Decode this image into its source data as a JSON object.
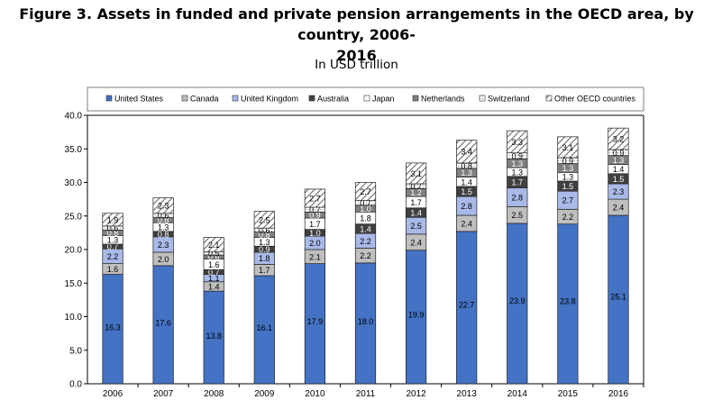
{
  "title_line1": "Figure 3. Assets in funded and private pension arrangements in the OECD area, by country, 2006-",
  "title_line2": "2016",
  "subtitle": "In USD trillion",
  "chart_data": {
    "type": "bar",
    "stacked": true,
    "categories": [
      "2006",
      "2007",
      "2008",
      "2009",
      "2010",
      "2011",
      "2012",
      "2013",
      "2014",
      "2015",
      "2016"
    ],
    "ylim": [
      0,
      40
    ],
    "yticks": [
      "0.0",
      "5.0",
      "10.0",
      "15.0",
      "20.0",
      "25.0",
      "30.0",
      "35.0",
      "40.0"
    ],
    "grid": false,
    "legend_position": "top",
    "series": [
      {
        "name": "United States",
        "color": "#4472C4",
        "pattern": "solid",
        "values": [
          16.3,
          17.6,
          13.8,
          16.1,
          17.9,
          18.0,
          19.9,
          22.7,
          23.9,
          23.8,
          25.1
        ],
        "labels": [
          "16.3",
          "17.6",
          "13.8",
          "16.1",
          "17.9",
          "18.0",
          "19.9",
          "22.7",
          "23.9",
          "23.8",
          "25.1"
        ]
      },
      {
        "name": "Canada",
        "color": "#BFBFBF",
        "pattern": "solid",
        "values": [
          1.6,
          2.0,
          1.4,
          1.7,
          2.1,
          2.2,
          2.4,
          2.4,
          2.5,
          2.2,
          2.4
        ],
        "labels": [
          "1.6",
          "2.0",
          "1.4",
          "1.7",
          "2.1",
          "2.2",
          "2.4",
          "2.4",
          "2.5",
          "2.2",
          "2.4"
        ]
      },
      {
        "name": "United Kingdom",
        "color": "#A9B9E8",
        "pattern": "solid",
        "values": [
          2.2,
          2.3,
          1.1,
          1.8,
          2.0,
          2.2,
          2.5,
          2.8,
          2.8,
          2.7,
          2.3
        ],
        "labels": [
          "2.2",
          "2.3",
          "1.1",
          "1.8",
          "2.0",
          "2.2",
          "2.5",
          "2.8",
          "2.8",
          "2.7",
          "2.3"
        ]
      },
      {
        "name": "Australia",
        "color": "#404040",
        "pattern": "solid",
        "values": [
          0.7,
          0.8,
          0.7,
          0.9,
          1.0,
          1.4,
          1.4,
          1.5,
          1.7,
          1.5,
          1.5
        ],
        "labels": [
          "0.7",
          "0.8",
          "0.7",
          "0.9",
          "1.0",
          "1.4",
          "1.4",
          "1.5",
          "1.7",
          "1.5",
          "1.5"
        ]
      },
      {
        "name": "Japan",
        "color": "#FFFFFF",
        "pattern": "solid",
        "values": [
          1.3,
          1.3,
          1.6,
          1.3,
          1.7,
          1.8,
          1.7,
          1.4,
          1.3,
          1.3,
          1.4
        ],
        "labels": [
          "1.3",
          "1.3",
          "1.6",
          "1.3",
          "1.7",
          "1.8",
          "1.7",
          "1.4",
          "1.3",
          "1.3",
          "1.4"
        ]
      },
      {
        "name": "Netherlands",
        "color": "#7F7F7F",
        "pattern": "solid",
        "values": [
          0.8,
          0.8,
          0.6,
          0.8,
          0.9,
          1.0,
          1.2,
          1.3,
          1.3,
          1.3,
          1.3
        ],
        "labels": [
          "0.8",
          "0.8",
          "0.6",
          "0.8",
          "0.9",
          "1.0",
          "1.2",
          "1.3",
          "1.3",
          "1.3",
          "1.3"
        ]
      },
      {
        "name": "Switzerland",
        "color": "#FFFFFF",
        "pattern": "dots",
        "values": [
          0.6,
          0.6,
          0.5,
          0.6,
          0.7,
          0.7,
          0.7,
          0.8,
          0.9,
          0.9,
          0.9
        ],
        "labels": [
          "0.6",
          "0.6",
          "0.5",
          "0.6",
          "0.7",
          "0.7",
          "0.7",
          "0.8",
          "0.9",
          "0.9",
          "0.9"
        ]
      },
      {
        "name": "Other OECD countries",
        "color": "#D9D9D9",
        "pattern": "hatch",
        "values": [
          1.9,
          2.3,
          2.1,
          2.5,
          2.7,
          2.7,
          3.1,
          3.4,
          3.3,
          3.1,
          3.2
        ],
        "labels": [
          "1.9",
          "2.3",
          "2.1",
          "2.5",
          "2.7",
          "2.7",
          "3.1",
          "3.4",
          "3.3",
          "3.1",
          "3.2"
        ]
      }
    ]
  }
}
